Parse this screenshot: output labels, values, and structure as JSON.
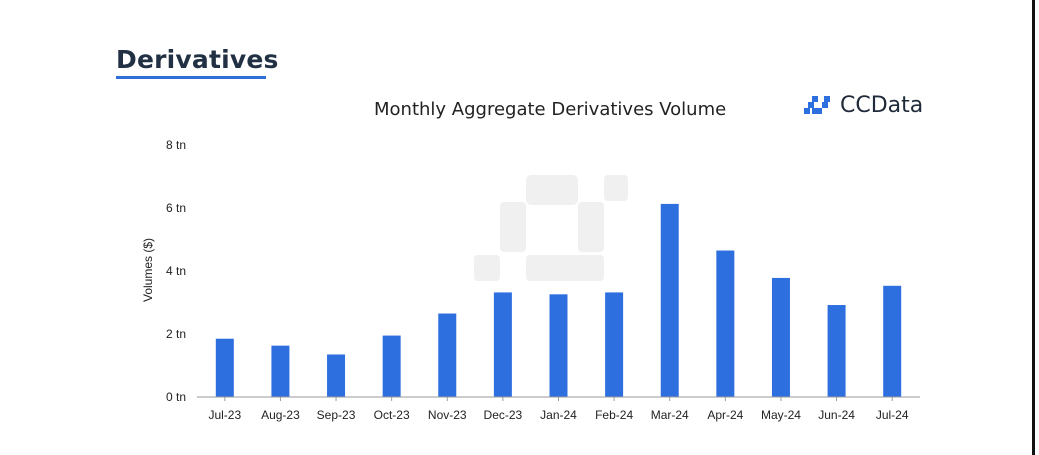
{
  "header": {
    "section_title": "Derivatives"
  },
  "brand": {
    "name": "CCData",
    "icon": "ccdata-logo-icon",
    "accent_color": "#2e6fe0"
  },
  "chart_data": {
    "type": "bar",
    "title": "Monthly Aggregate Derivatives Volume",
    "xlabel": "",
    "ylabel": "Volumes ($)",
    "categories": [
      "Jul-23",
      "Aug-23",
      "Sep-23",
      "Oct-23",
      "Nov-23",
      "Dec-23",
      "Jan-24",
      "Feb-24",
      "Mar-24",
      "Apr-24",
      "May-24",
      "Jun-24",
      "Jul-24"
    ],
    "values": [
      1.85,
      1.63,
      1.35,
      1.95,
      2.65,
      3.32,
      3.26,
      3.32,
      6.13,
      4.65,
      3.78,
      2.92,
      3.53
    ],
    "ylim": [
      0,
      8
    ],
    "y_ticks": [
      0,
      2,
      4,
      6,
      8
    ],
    "y_tick_labels": [
      "0 tn",
      "2 tn",
      "4 tn",
      "6 tn",
      "8 tn"
    ],
    "grid": false,
    "bar_color": "#2e6fe0",
    "legend": "none"
  }
}
